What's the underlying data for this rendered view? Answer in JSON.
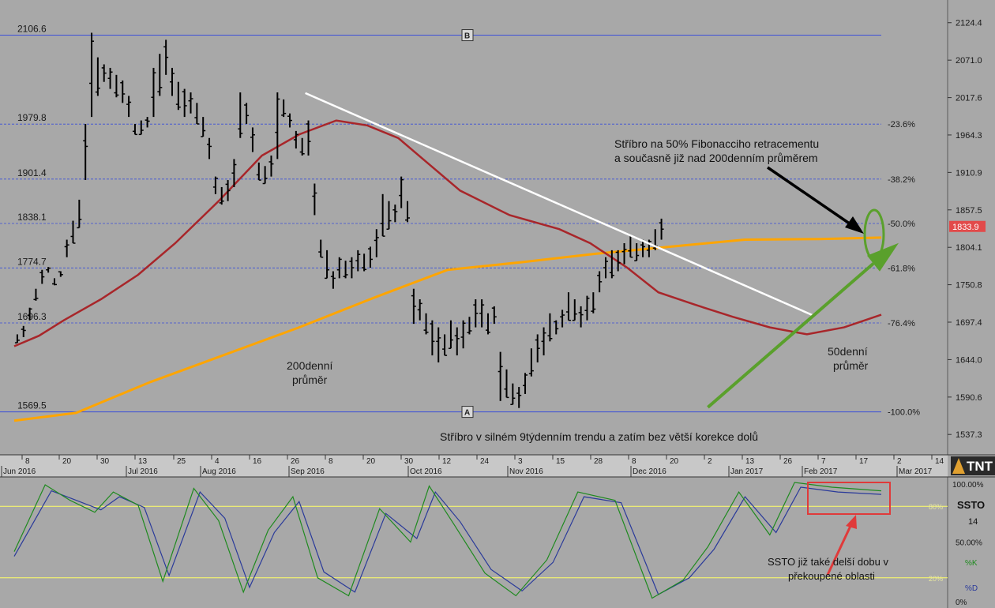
{
  "colors": {
    "background": "#a8a8a8",
    "price_bar": "#000000",
    "fib_line": "#3b4fd8",
    "ma50": "#a8262a",
    "ma200": "#ffa500",
    "trendline_down": "#ffffff",
    "trendline_up": "#5aa02c",
    "current_price_badge": "#e24a4a",
    "stoch_k": "#1f8a1f",
    "stoch_d": "#2a3a9a",
    "stoch_level": "#ffff66",
    "callout_box": "#e03a3a"
  },
  "chart_data": [
    {
      "type": "ohlc",
      "title": "",
      "y_axis": {
        "side": "right",
        "range": [
          1515,
          2150
        ],
        "ticks": [
          2124.4,
          2071.0,
          2017.6,
          1964.3,
          1910.9,
          1857.5,
          1804.1,
          1750.8,
          1697.4,
          1644.0,
          1590.6,
          1537.3
        ],
        "tick_labels": [
          "2124.4",
          "2071.0",
          "2017.6",
          "1964.3",
          "1910.9",
          "1857.5",
          "1804.1",
          "1750.8",
          "1697.4",
          "1644.0",
          "1590.6",
          "1537.3"
        ]
      },
      "x_axis": {
        "day_ticks": [
          "8",
          "20",
          "30",
          "13",
          "25",
          "4",
          "16",
          "26",
          "8",
          "20",
          "30",
          "12",
          "24",
          "3",
          "15",
          "28",
          "8",
          "20",
          "2",
          "13",
          "26",
          "7",
          "17",
          "2",
          "14"
        ],
        "month_labels": [
          "Jun 2016",
          "Jul 2016",
          "Aug 2016",
          "Sep 2016",
          "Oct 2016",
          "Nov 2016",
          "Dec 2016",
          "Jan 2017",
          "Feb 2017",
          "Mar 2017"
        ]
      },
      "current_price": {
        "value": 1833.9,
        "label": "1833.9"
      },
      "fibonacci_levels": [
        {
          "price": 2106.6,
          "left_label": "2106.6",
          "right_label": ""
        },
        {
          "price": 1979.8,
          "left_label": "1979.8",
          "right_label": "-23.6%"
        },
        {
          "price": 1901.4,
          "left_label": "1901.4",
          "right_label": "-38.2%"
        },
        {
          "price": 1838.1,
          "left_label": "1838.1",
          "right_label": "-50.0%"
        },
        {
          "price": 1774.7,
          "left_label": "1774.7",
          "right_label": "-61.8%"
        },
        {
          "price": 1696.3,
          "left_label": "1696.3",
          "right_label": "-76.4%"
        },
        {
          "price": 1569.5,
          "left_label": "1569.5",
          "right_label": "-100.0%"
        }
      ],
      "fib_anchor_labels": {
        "top": "B",
        "bottom": "A"
      },
      "price_path": [
        [
          1668,
          1680
        ],
        [
          1676,
          1692
        ],
        [
          1700,
          1718
        ],
        [
          1728,
          1745
        ],
        [
          1752,
          1772
        ],
        [
          1768,
          1776
        ],
        [
          1750,
          1760
        ],
        [
          1762,
          1770
        ],
        [
          1790,
          1815
        ],
        [
          1810,
          1842
        ],
        [
          1832,
          1872
        ],
        [
          1900,
          1980
        ],
        [
          1990,
          2110
        ],
        [
          2020,
          2075
        ],
        [
          2040,
          2065
        ],
        [
          2030,
          2060
        ],
        [
          2018,
          2050
        ],
        [
          2010,
          2042
        ],
        [
          1990,
          2020
        ],
        [
          1965,
          1980
        ],
        [
          1965,
          1985
        ],
        [
          1975,
          1990
        ],
        [
          1990,
          2060
        ],
        [
          2020,
          2080
        ],
        [
          2050,
          2100
        ],
        [
          2020,
          2060
        ],
        [
          2000,
          2040
        ],
        [
          1990,
          2030
        ],
        [
          1995,
          2025
        ],
        [
          1980,
          2010
        ],
        [
          1962,
          1990
        ],
        [
          1930,
          1960
        ],
        [
          1880,
          1905
        ],
        [
          1865,
          1890
        ],
        [
          1870,
          1900
        ],
        [
          1890,
          1930
        ],
        [
          1960,
          2025
        ],
        [
          1980,
          2010
        ],
        [
          1940,
          1975
        ],
        [
          1900,
          1925
        ],
        [
          1895,
          1920
        ],
        [
          1905,
          1935
        ],
        [
          1930,
          2025
        ],
        [
          1990,
          2015
        ],
        [
          1975,
          1995
        ],
        [
          1945,
          1970
        ],
        [
          1935,
          1960
        ],
        [
          1935,
          1985
        ],
        [
          1850,
          1895
        ],
        [
          1790,
          1815
        ],
        [
          1760,
          1800
        ],
        [
          1745,
          1770
        ],
        [
          1760,
          1790
        ],
        [
          1760,
          1785
        ],
        [
          1760,
          1790
        ],
        [
          1770,
          1800
        ],
        [
          1770,
          1795
        ],
        [
          1775,
          1805
        ],
        [
          1790,
          1830
        ],
        [
          1820,
          1880
        ],
        [
          1830,
          1870
        ],
        [
          1840,
          1865
        ],
        [
          1860,
          1905
        ],
        [
          1840,
          1870
        ],
        [
          1695,
          1745
        ],
        [
          1700,
          1730
        ],
        [
          1680,
          1710
        ],
        [
          1650,
          1700
        ],
        [
          1640,
          1690
        ],
        [
          1650,
          1680
        ],
        [
          1660,
          1700
        ],
        [
          1650,
          1690
        ],
        [
          1660,
          1700
        ],
        [
          1680,
          1705
        ],
        [
          1690,
          1730
        ],
        [
          1690,
          1730
        ],
        [
          1680,
          1710
        ],
        [
          1695,
          1720
        ],
        [
          1585,
          1655
        ],
        [
          1590,
          1630
        ],
        [
          1580,
          1610
        ],
        [
          1575,
          1605
        ],
        [
          1595,
          1625
        ],
        [
          1620,
          1660
        ],
        [
          1640,
          1680
        ],
        [
          1650,
          1690
        ],
        [
          1670,
          1710
        ],
        [
          1680,
          1700
        ],
        [
          1690,
          1715
        ],
        [
          1700,
          1740
        ],
        [
          1700,
          1730
        ],
        [
          1690,
          1720
        ],
        [
          1700,
          1735
        ],
        [
          1710,
          1740
        ],
        [
          1740,
          1770
        ],
        [
          1760,
          1790
        ],
        [
          1760,
          1800
        ],
        [
          1770,
          1800
        ],
        [
          1780,
          1810
        ],
        [
          1790,
          1820
        ],
        [
          1785,
          1810
        ],
        [
          1790,
          1815
        ],
        [
          1790,
          1815
        ],
        [
          1800,
          1830
        ],
        [
          1815,
          1845
        ]
      ],
      "ma50": [
        [
          0,
          1663
        ],
        [
          4,
          1678
        ],
        [
          8,
          1700
        ],
        [
          14,
          1730
        ],
        [
          20,
          1765
        ],
        [
          26,
          1810
        ],
        [
          33,
          1870
        ],
        [
          40,
          1935
        ],
        [
          46,
          1965
        ],
        [
          52,
          1985
        ],
        [
          57,
          1978
        ],
        [
          62,
          1960
        ],
        [
          66,
          1930
        ],
        [
          72,
          1885
        ],
        [
          80,
          1850
        ],
        [
          88,
          1830
        ],
        [
          93,
          1810
        ],
        [
          99,
          1775
        ],
        [
          104,
          1740
        ],
        [
          110,
          1722
        ],
        [
          116,
          1705
        ],
        [
          122,
          1690
        ],
        [
          128,
          1680
        ],
        [
          134,
          1690
        ],
        [
          140,
          1708
        ]
      ],
      "ma200": [
        [
          0,
          1557
        ],
        [
          10,
          1568
        ],
        [
          22,
          1612
        ],
        [
          34,
          1651
        ],
        [
          46,
          1690
        ],
        [
          58,
          1732
        ],
        [
          70,
          1772
        ],
        [
          82,
          1783
        ],
        [
          94,
          1795
        ],
        [
          106,
          1805
        ],
        [
          118,
          1815
        ],
        [
          130,
          1816
        ],
        [
          140,
          1818
        ]
      ],
      "trendlines": [
        {
          "name": "downtrend",
          "from": [
            47,
            2024
          ],
          "to": [
            129,
            1707
          ]
        },
        {
          "name": "uptrend",
          "from": [
            112,
            1576
          ],
          "to": [
            140,
            1790
          ]
        }
      ],
      "annotations": [
        {
          "text": [
            "200denní",
            "průměr"
          ]
        },
        {
          "text": [
            "50denní",
            "průměr"
          ]
        },
        {
          "text": [
            "Stříbro na 50% Fibonacciho retracementu",
            "a současně již nad 200denním průměrem"
          ]
        },
        {
          "text": [
            "Stříbro v silném 9týdenním trendu a zatím bez větší korekce dolů"
          ]
        }
      ]
    },
    {
      "type": "line",
      "title": "SSTO",
      "period": "14",
      "y_axis": {
        "range": [
          0,
          100
        ],
        "tick_labels": [
          "100.00%",
          "50.00%",
          "0%"
        ]
      },
      "levels": [
        {
          "value": 80,
          "label": "80%"
        },
        {
          "value": 20,
          "label": "20%"
        }
      ],
      "series": [
        {
          "name": "%K",
          "values": [
            [
              0,
              42
            ],
            [
              5,
              98
            ],
            [
              9,
              85
            ],
            [
              13,
              75
            ],
            [
              16,
              92
            ],
            [
              20,
              81
            ],
            [
              24,
              17
            ],
            [
              29,
              95
            ],
            [
              33,
              68
            ],
            [
              37,
              8
            ],
            [
              41,
              60
            ],
            [
              45,
              88
            ],
            [
              49,
              20
            ],
            [
              54,
              5
            ],
            [
              59,
              78
            ],
            [
              64,
              50
            ],
            [
              67,
              97
            ],
            [
              71,
              65
            ],
            [
              76,
              24
            ],
            [
              81,
              5
            ],
            [
              86,
              35
            ],
            [
              91,
              92
            ],
            [
              97,
              85
            ],
            [
              103,
              3
            ],
            [
              108,
              18
            ],
            [
              112,
              46
            ],
            [
              117,
              92
            ],
            [
              122,
              56
            ],
            [
              126,
              100
            ],
            [
              132,
              96
            ],
            [
              140,
              93
            ]
          ]
        },
        {
          "name": "%D",
          "values": [
            [
              0,
              38
            ],
            [
              6,
              93
            ],
            [
              10,
              85
            ],
            [
              14,
              77
            ],
            [
              17,
              88
            ],
            [
              21,
              79
            ],
            [
              25,
              22
            ],
            [
              30,
              92
            ],
            [
              34,
              70
            ],
            [
              38,
              12
            ],
            [
              42,
              58
            ],
            [
              46,
              84
            ],
            [
              50,
              25
            ],
            [
              55,
              8
            ],
            [
              60,
              74
            ],
            [
              65,
              53
            ],
            [
              68,
              92
            ],
            [
              72,
              67
            ],
            [
              77,
              27
            ],
            [
              82,
              9
            ],
            [
              87,
              33
            ],
            [
              92,
              88
            ],
            [
              98,
              83
            ],
            [
              104,
              6
            ],
            [
              109,
              20
            ],
            [
              113,
              44
            ],
            [
              118,
              88
            ],
            [
              123,
              58
            ],
            [
              127,
              96
            ],
            [
              133,
              92
            ],
            [
              140,
              90
            ]
          ]
        }
      ],
      "annotation": {
        "text": [
          "SSTO již také delší dobu v",
          "překoupené oblasti"
        ]
      }
    }
  ],
  "logo": {
    "text": "TNT"
  }
}
